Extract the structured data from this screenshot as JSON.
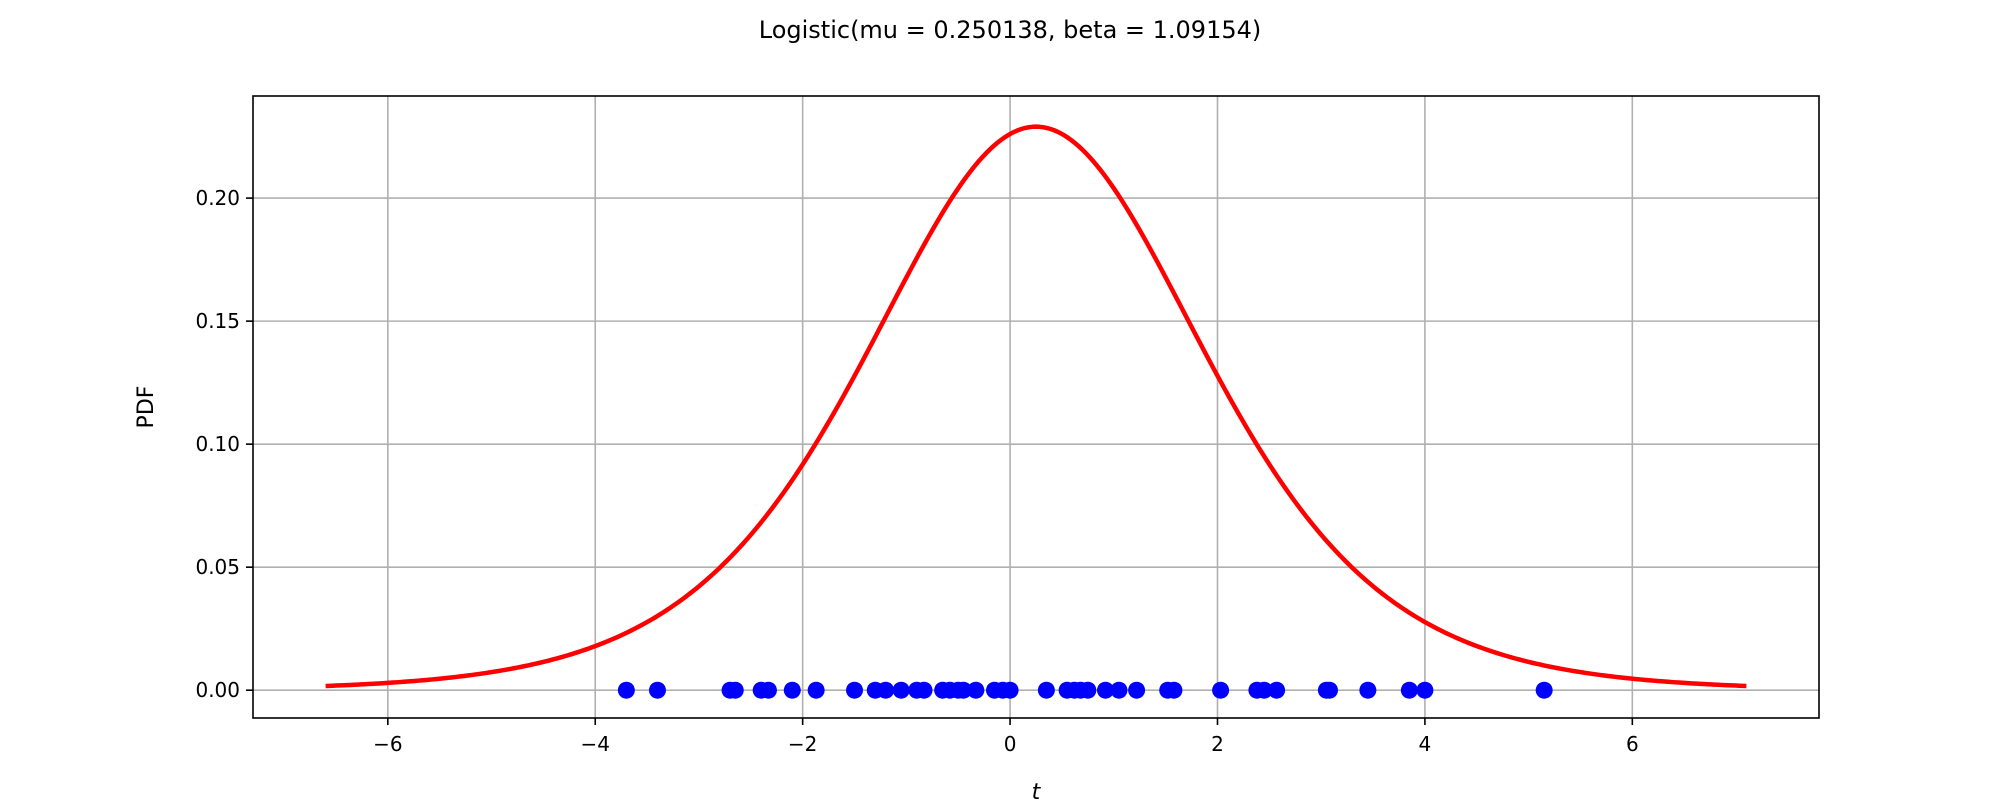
{
  "chart_data": {
    "type": "line",
    "title": "Logistic(mu = 0.250138, beta = 1.09154)",
    "xlabel": "t",
    "ylabel": "PDF",
    "xlim": [
      -7.3,
      7.8
    ],
    "ylim": [
      -0.0113,
      0.2415
    ],
    "xticks": [
      -6,
      -4,
      -2,
      0,
      2,
      4,
      6
    ],
    "xtick_labels": [
      "−6",
      "−4",
      "−2",
      "0",
      "2",
      "4",
      "6"
    ],
    "yticks": [
      0.0,
      0.05,
      0.1,
      0.15,
      0.2
    ],
    "ytick_labels": [
      "0.00",
      "0.05",
      "0.10",
      "0.15",
      "0.20"
    ],
    "grid": true,
    "legend": "none",
    "pdf_curve": {
      "distribution": "logistic",
      "mu": 0.250138,
      "beta": 1.09154,
      "x_range": [
        -6.6,
        7.1
      ],
      "color": "#ff0000"
    },
    "samples": {
      "color": "#0000ff",
      "y": 0.0,
      "x": [
        -3.7,
        -3.4,
        -2.7,
        -2.65,
        -2.4,
        -2.33,
        -2.1,
        -1.87,
        -1.5,
        -1.3,
        -1.2,
        -1.05,
        -0.9,
        -0.83,
        -0.65,
        -0.58,
        -0.5,
        -0.45,
        -0.33,
        -0.15,
        -0.07,
        0.0,
        0.35,
        0.55,
        0.62,
        0.68,
        0.75,
        0.92,
        1.05,
        1.22,
        1.52,
        1.58,
        2.03,
        2.38,
        2.45,
        2.57,
        3.05,
        3.08,
        3.45,
        3.85,
        4.0,
        5.15
      ]
    }
  }
}
